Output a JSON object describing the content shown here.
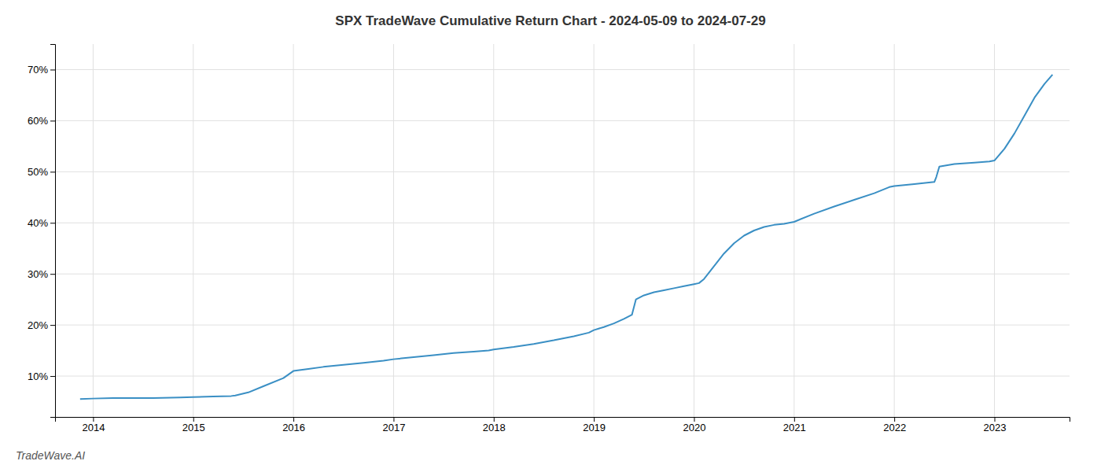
{
  "chart_data": {
    "type": "line",
    "title": "SPX TradeWave Cumulative Return Chart - 2024-05-09 to 2024-07-29",
    "annotations": [
      "TradeWave.AI"
    ],
    "color": "#3a8fc4",
    "grid": true,
    "xlim": [
      2013.62,
      2023.75
    ],
    "ylim": [
      0.02,
      0.75
    ],
    "xticks": [
      2014,
      2015,
      2016,
      2017,
      2018,
      2019,
      2020,
      2021,
      2022,
      2023
    ],
    "yticks": [
      {
        "value": 0.1,
        "label": "10%"
      },
      {
        "value": 0.2,
        "label": "20%"
      },
      {
        "value": 0.3,
        "label": "30%"
      },
      {
        "value": 0.4,
        "label": "40%"
      },
      {
        "value": 0.5,
        "label": "50%"
      },
      {
        "value": 0.6,
        "label": "60%"
      },
      {
        "value": 0.7,
        "label": "70%"
      }
    ],
    "x": [
      2013.87,
      2014.0,
      2014.2,
      2014.4,
      2014.6,
      2014.87,
      2015.0,
      2015.2,
      2015.38,
      2015.42,
      2015.55,
      2015.7,
      2015.9,
      2016.0,
      2016.15,
      2016.3,
      2016.5,
      2016.7,
      2016.9,
      2017.0,
      2017.2,
      2017.4,
      2017.6,
      2017.8,
      2017.95,
      2018.0,
      2018.2,
      2018.4,
      2018.6,
      2018.8,
      2018.95,
      2019.0,
      2019.1,
      2019.2,
      2019.3,
      2019.38,
      2019.42,
      2019.5,
      2019.6,
      2019.7,
      2019.8,
      2019.9,
      2019.95,
      2020.0,
      2020.05,
      2020.1,
      2020.2,
      2020.3,
      2020.4,
      2020.5,
      2020.6,
      2020.7,
      2020.8,
      2020.9,
      2020.95,
      2021.0,
      2021.2,
      2021.4,
      2021.6,
      2021.8,
      2021.95,
      2022.0,
      2022.2,
      2022.4,
      2022.42,
      2022.45,
      2022.6,
      2022.8,
      2022.95,
      2023.0,
      2023.1,
      2023.2,
      2023.3,
      2023.4,
      2023.5,
      2023.58
    ],
    "values": [
      0.055,
      0.056,
      0.057,
      0.057,
      0.057,
      0.058,
      0.059,
      0.06,
      0.061,
      0.062,
      0.068,
      0.08,
      0.096,
      0.11,
      0.114,
      0.118,
      0.122,
      0.126,
      0.13,
      0.133,
      0.137,
      0.141,
      0.145,
      0.148,
      0.15,
      0.152,
      0.157,
      0.163,
      0.17,
      0.178,
      0.185,
      0.19,
      0.196,
      0.203,
      0.212,
      0.22,
      0.25,
      0.258,
      0.264,
      0.268,
      0.272,
      0.276,
      0.278,
      0.28,
      0.282,
      0.29,
      0.315,
      0.34,
      0.36,
      0.375,
      0.385,
      0.392,
      0.396,
      0.398,
      0.4,
      0.402,
      0.418,
      0.432,
      0.445,
      0.458,
      0.47,
      0.472,
      0.476,
      0.48,
      0.49,
      0.51,
      0.515,
      0.518,
      0.52,
      0.522,
      0.545,
      0.575,
      0.61,
      0.645,
      0.672,
      0.69
    ]
  }
}
